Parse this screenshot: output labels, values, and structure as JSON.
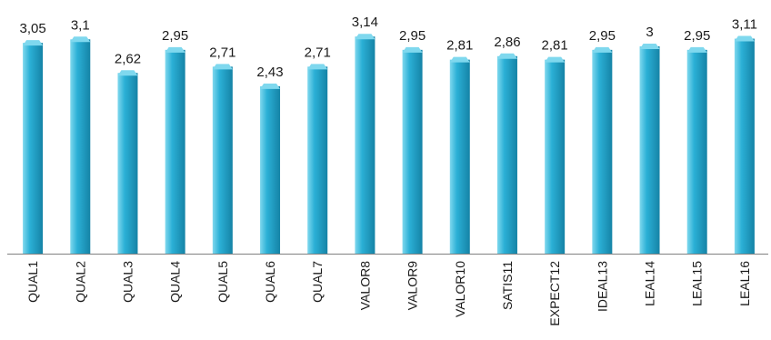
{
  "chart_data": {
    "type": "bar",
    "categories": [
      "QUAL1",
      "QUAL2",
      "QUAL3",
      "QUAL4",
      "QUAL5",
      "QUAL6",
      "QUAL7",
      "VALOR8",
      "VALOR9",
      "VALOR10",
      "SATIS11",
      "EXPECT12",
      "IDEAL13",
      "LEAL14",
      "LEAL15",
      "LEAL16"
    ],
    "values": [
      3.05,
      3.1,
      2.62,
      2.95,
      2.71,
      2.43,
      2.71,
      3.14,
      2.95,
      2.81,
      2.86,
      2.81,
      2.95,
      3,
      2.95,
      3.11
    ],
    "value_labels": [
      "3,05",
      "3,1",
      "2,62",
      "2,95",
      "2,71",
      "2,43",
      "2,71",
      "3,14",
      "2,95",
      "2,81",
      "2,86",
      "2,81",
      "2,95",
      "3",
      "2,95",
      "3,11"
    ],
    "title": "",
    "xlabel": "",
    "ylabel": "",
    "ylim": [
      0,
      3.4
    ],
    "grid": false,
    "legend": "none",
    "colors": {
      "bar_light": "#7fd8ee",
      "bar_main": "#2bb0d6",
      "bar_dark": "#1583a6",
      "axis": "#808080"
    }
  }
}
